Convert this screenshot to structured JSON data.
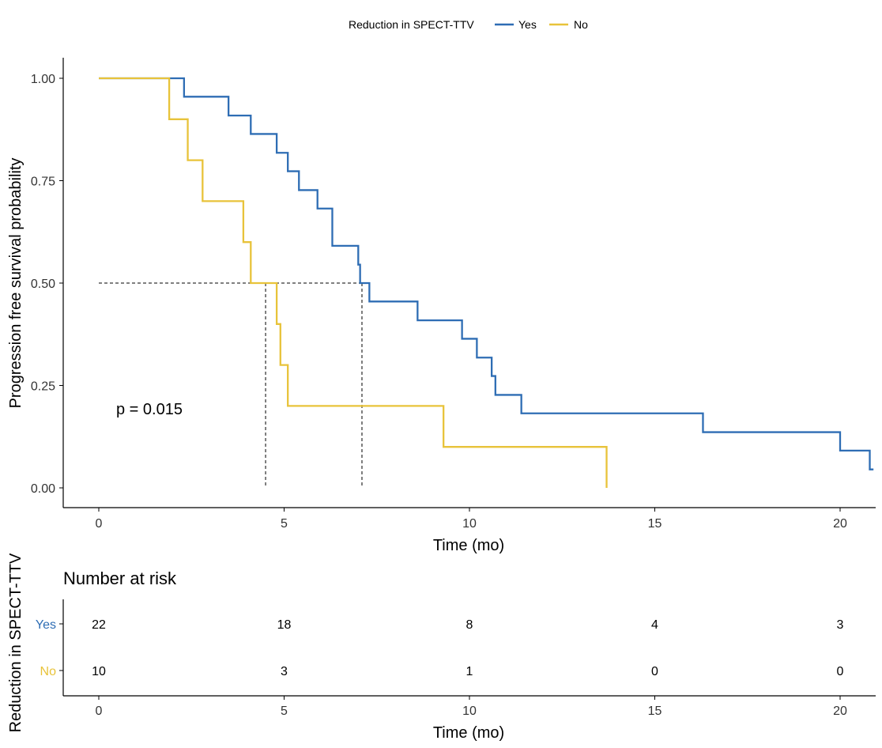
{
  "legend": {
    "title": "Reduction in SPECT-TTV",
    "items": [
      {
        "label": "Yes",
        "color": "#2E6DB4"
      },
      {
        "label": "No",
        "color": "#E8C33A"
      }
    ]
  },
  "annotation": {
    "p_value": "p = 0.015"
  },
  "risk_table": {
    "title": "Number at risk",
    "ylabel": "Reduction in SPECT-TTV",
    "xlabel": "Time (mo)",
    "times": [
      0,
      5,
      10,
      15,
      20
    ],
    "rows": [
      {
        "label": "Yes",
        "color": "#2E6DB4",
        "values": [
          22,
          18,
          8,
          4,
          3
        ]
      },
      {
        "label": "No",
        "color": "#E8C33A",
        "values": [
          10,
          3,
          1,
          0,
          0
        ]
      }
    ]
  },
  "chart_data": {
    "type": "line",
    "subtype": "kaplan-meier-step",
    "xlabel": "Time (mo)",
    "ylabel": "Progression free survival probability",
    "xlim": [
      -1,
      20.9
    ],
    "ylim": [
      0,
      1.0
    ],
    "xticks": [
      0,
      5,
      10,
      15,
      20
    ],
    "yticks": [
      "0.00",
      "0.25",
      "0.50",
      "0.75",
      "1.00"
    ],
    "ytick_values": [
      0,
      0.25,
      0.5,
      0.75,
      1.0
    ],
    "grid": false,
    "legend_position": "top",
    "series": [
      {
        "name": "Yes",
        "color": "#2E6DB4",
        "points": [
          [
            1.9,
            1.0
          ],
          [
            2.3,
            0.955
          ],
          [
            3.5,
            0.909
          ],
          [
            4.1,
            0.864
          ],
          [
            4.8,
            0.818
          ],
          [
            5.1,
            0.773
          ],
          [
            5.4,
            0.727
          ],
          [
            5.9,
            0.682
          ],
          [
            6.3,
            0.591
          ],
          [
            7.0,
            0.545
          ],
          [
            7.05,
            0.5
          ],
          [
            7.3,
            0.455
          ],
          [
            8.6,
            0.409
          ],
          [
            9.8,
            0.364
          ],
          [
            10.2,
            0.318
          ],
          [
            10.6,
            0.273
          ],
          [
            10.7,
            0.227
          ],
          [
            11.4,
            0.182
          ],
          [
            16.3,
            0.136
          ],
          [
            20.0,
            0.091
          ],
          [
            20.8,
            0.045
          ],
          [
            20.9,
            0.045
          ]
        ]
      },
      {
        "name": "No",
        "color": "#E8C33A",
        "points": [
          [
            0,
            1.0
          ],
          [
            1.9,
            0.9
          ],
          [
            2.4,
            0.8
          ],
          [
            2.8,
            0.7
          ],
          [
            3.9,
            0.6
          ],
          [
            4.1,
            0.5
          ],
          [
            4.8,
            0.4
          ],
          [
            4.9,
            0.3
          ],
          [
            5.1,
            0.2
          ],
          [
            9.3,
            0.1
          ],
          [
            13.7,
            0.0
          ]
        ]
      }
    ],
    "medians": [
      {
        "series": "Yes",
        "x": 7.1,
        "y": 0.5
      },
      {
        "series": "No",
        "x": 4.5,
        "y": 0.5
      }
    ]
  }
}
